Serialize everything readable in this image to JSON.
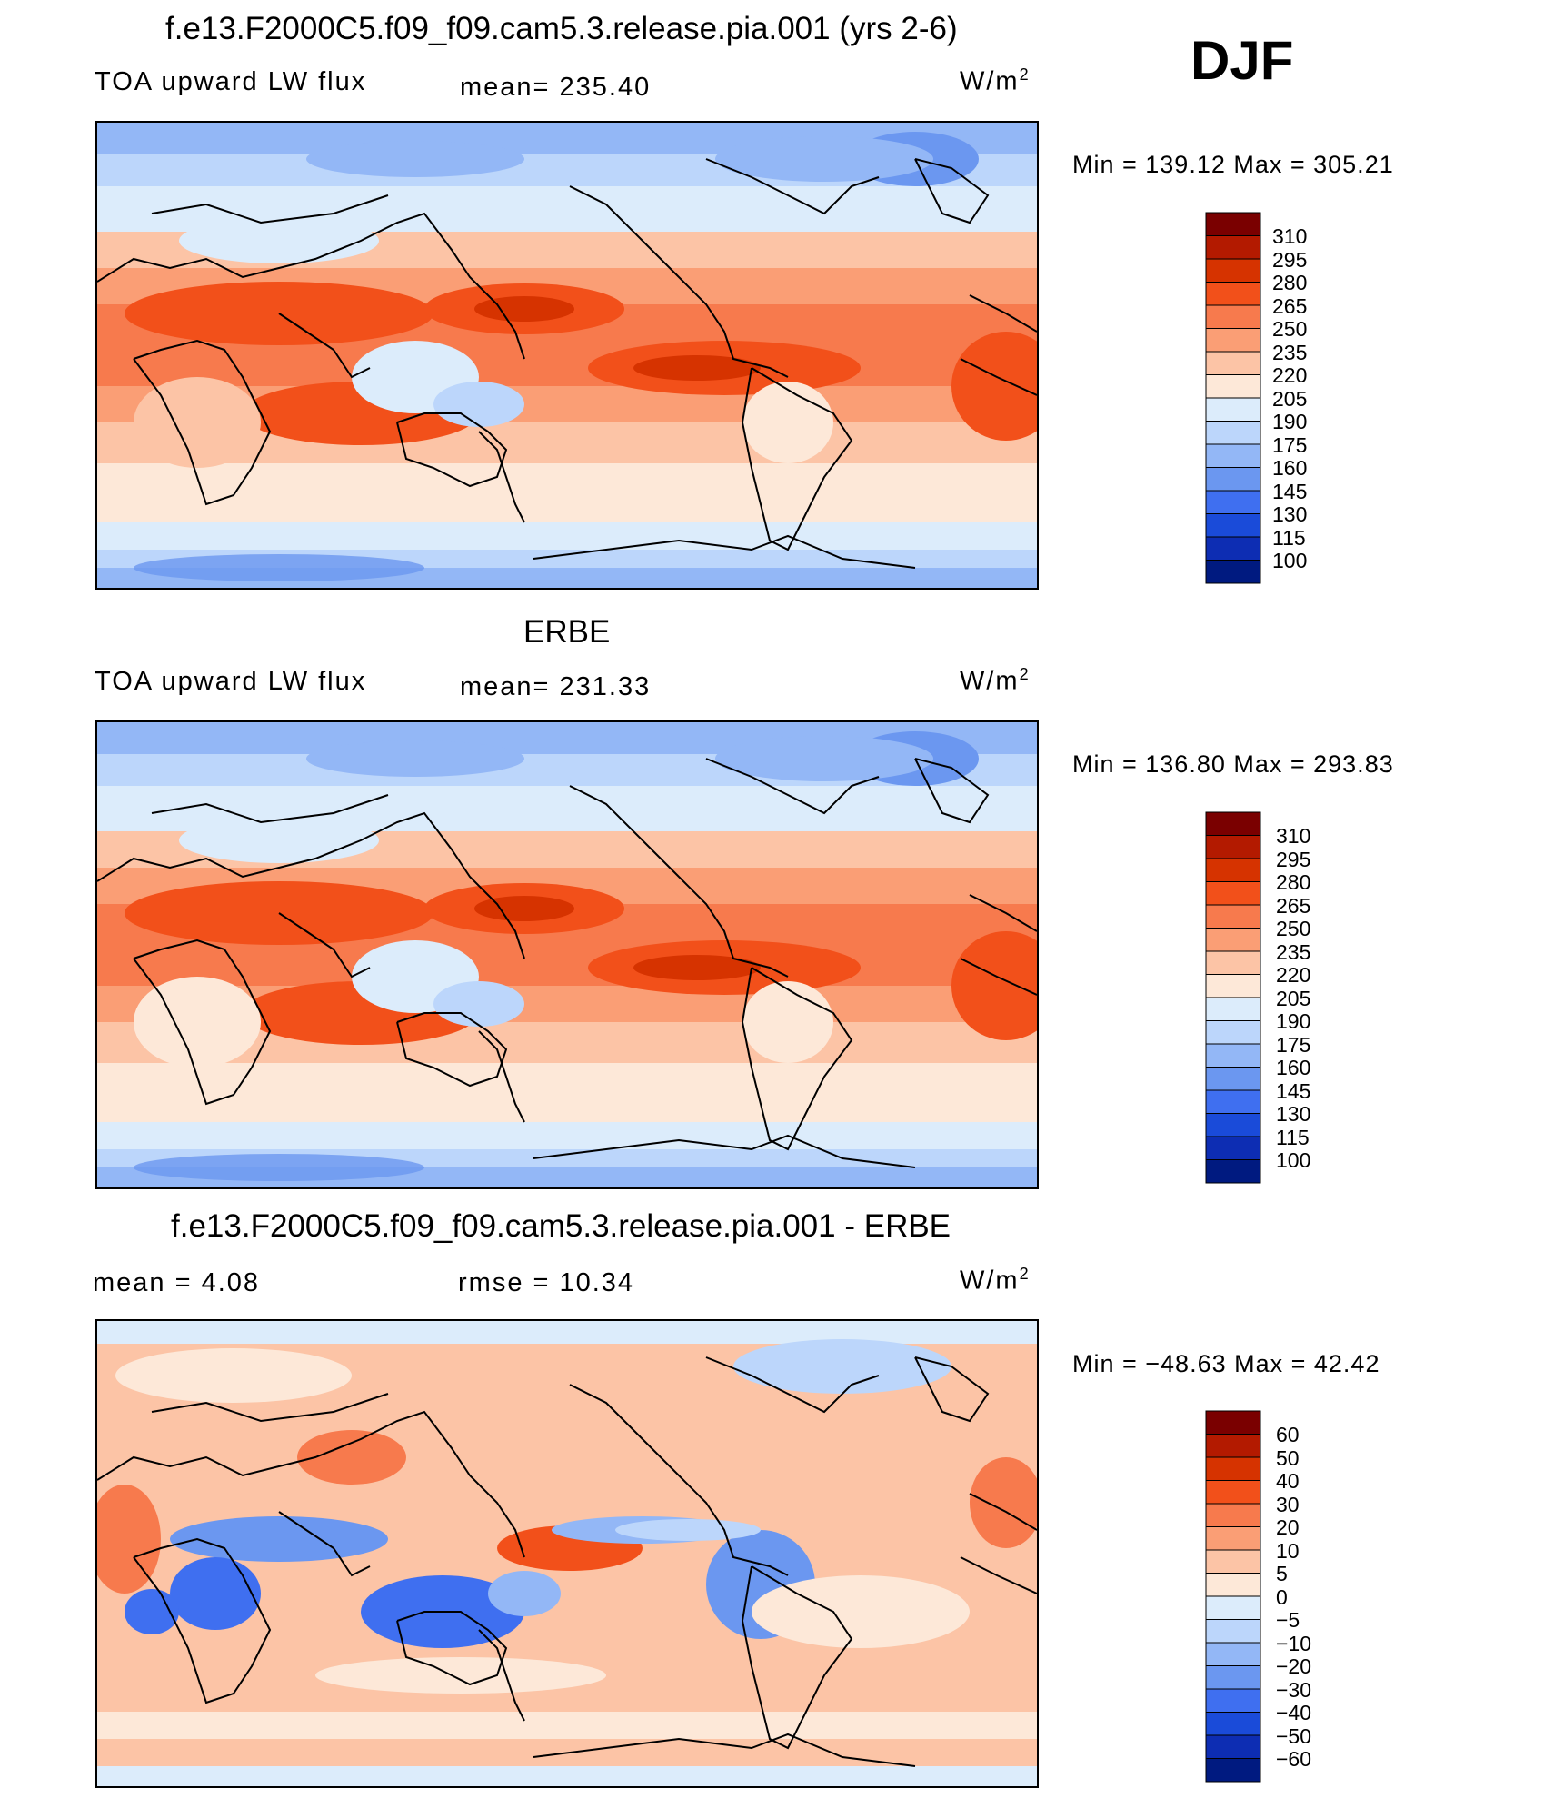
{
  "season": "DJF",
  "panels": [
    {
      "id": "model",
      "title": "f.e13.F2000C5.f09_f09.cam5.3.release.pia.001 (yrs 2-6)",
      "left": "TOA upward LW flux",
      "center": "mean= 235.40",
      "units": "W/m",
      "units_sup": "2",
      "minmax": "Min  =  139.12  Max  =  305.21",
      "levels": [
        "310",
        "295",
        "280",
        "265",
        "250",
        "235",
        "220",
        "205",
        "190",
        "175",
        "160",
        "145",
        "130",
        "115",
        "100"
      ],
      "colors": [
        "#7a0000",
        "#b31a00",
        "#d63300",
        "#f2501a",
        "#f77a4d",
        "#fa9e75",
        "#fcc4a6",
        "#fde8d8",
        "#dcecfb",
        "#bcd6fb",
        "#93b7f6",
        "#6b97f0",
        "#3f6ff0",
        "#1a4bd9",
        "#0d2db3",
        "#001a80"
      ],
      "map_style": "abs"
    },
    {
      "id": "obs",
      "title": "ERBE",
      "left": "TOA upward LW flux",
      "center": "mean= 231.33",
      "units": "W/m",
      "units_sup": "2",
      "minmax": "Min  =  136.80  Max  =  293.83",
      "levels": [
        "310",
        "295",
        "280",
        "265",
        "250",
        "235",
        "220",
        "205",
        "190",
        "175",
        "160",
        "145",
        "130",
        "115",
        "100"
      ],
      "colors": [
        "#7a0000",
        "#b31a00",
        "#d63300",
        "#f2501a",
        "#f77a4d",
        "#fa9e75",
        "#fcc4a6",
        "#fde8d8",
        "#dcecfb",
        "#bcd6fb",
        "#93b7f6",
        "#6b97f0",
        "#3f6ff0",
        "#1a4bd9",
        "#0d2db3",
        "#001a80"
      ],
      "map_style": "abs"
    },
    {
      "id": "diff",
      "title": "f.e13.F2000C5.f09_f09.cam5.3.release.pia.001 - ERBE",
      "left": "mean  =      4.08",
      "center": "rmse  =     10.34",
      "units": "W/m",
      "units_sup": "2",
      "minmax": "Min  =  −48.63  Max  =    42.42",
      "levels": [
        "60",
        "50",
        "40",
        "30",
        "20",
        "10",
        "5",
        "0",
        "−5",
        "−10",
        "−20",
        "−30",
        "−40",
        "−50",
        "−60"
      ],
      "colors": [
        "#7a0000",
        "#b31a00",
        "#d63300",
        "#f2501a",
        "#f77a4d",
        "#fa9e75",
        "#fcc4a6",
        "#fde8d8",
        "#dcecfb",
        "#bcd6fb",
        "#93b7f6",
        "#6b97f0",
        "#3f6ff0",
        "#1a4bd9",
        "#0d2db3",
        "#001a80"
      ],
      "map_style": "diff"
    }
  ],
  "chart_data": [
    {
      "type": "heatmap",
      "title": "f.e13.F2000C5.f09_f09.cam5.3.release.pia.001 (yrs 2-6)",
      "variable": "TOA upward LW flux",
      "units": "W/m2",
      "mean": 235.4,
      "min": 139.12,
      "max": 305.21,
      "colorbar_levels": [
        310,
        295,
        280,
        265,
        250,
        235,
        220,
        205,
        190,
        175,
        160,
        145,
        130,
        115,
        100
      ]
    },
    {
      "type": "heatmap",
      "title": "ERBE",
      "variable": "TOA upward LW flux",
      "units": "W/m2",
      "mean": 231.33,
      "min": 136.8,
      "max": 293.83,
      "colorbar_levels": [
        310,
        295,
        280,
        265,
        250,
        235,
        220,
        205,
        190,
        175,
        160,
        145,
        130,
        115,
        100
      ]
    },
    {
      "type": "heatmap",
      "title": "f.e13.F2000C5.f09_f09.cam5.3.release.pia.001 - ERBE",
      "units": "W/m2",
      "mean": 4.08,
      "rmse": 10.34,
      "min": -48.63,
      "max": 42.42,
      "colorbar_levels": [
        60,
        50,
        40,
        30,
        20,
        10,
        5,
        0,
        -5,
        -10,
        -20,
        -30,
        -40,
        -50,
        -60
      ]
    }
  ]
}
